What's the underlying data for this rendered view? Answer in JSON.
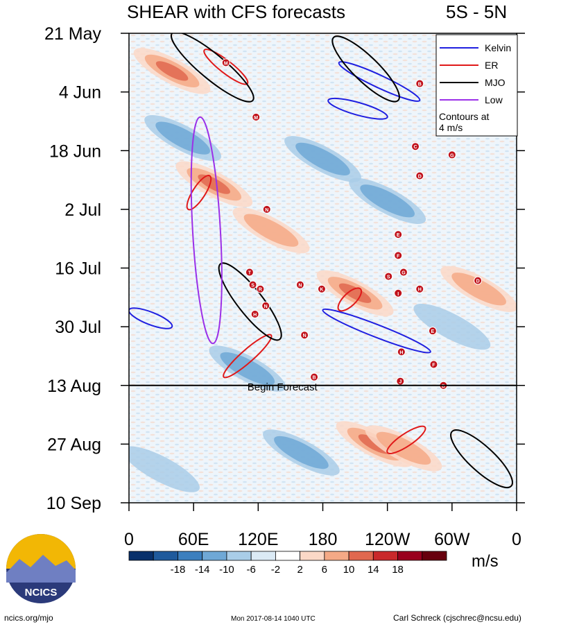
{
  "chart_data": {
    "type": "heatmap",
    "title": "SHEAR with CFS forecasts",
    "region_label": "5S - 5N",
    "y_tick_labels": [
      "21 May",
      "4 Jun",
      "18 Jun",
      "2 Jul",
      "16 Jul",
      "30 Jul",
      "13 Aug",
      "27 Aug",
      "10 Sep"
    ],
    "x_tick_labels": [
      "0",
      "60E",
      "120E",
      "180",
      "120W",
      "60W",
      "0"
    ],
    "x_range_deg": [
      0,
      360
    ],
    "y_range_days": [
      0,
      112
    ],
    "forecast_start_day": 84,
    "forecast_label": "Begin Forecast",
    "colorbar": {
      "levels": [
        "-18",
        "-14",
        "-10",
        "-6",
        "-2",
        "2",
        "6",
        "10",
        "14",
        "18"
      ],
      "colors": [
        "#08306b",
        "#1f5a9c",
        "#3c7fbe",
        "#6fa8d6",
        "#a9cde8",
        "#dbeaf5",
        "#ffffff",
        "#fbd8c7",
        "#f4a986",
        "#e0684f",
        "#c9292b",
        "#99001d",
        "#67000d"
      ],
      "units": "m/s"
    },
    "legend": {
      "entries": [
        {
          "name": "Kelvin",
          "color": "#1f1fe0"
        },
        {
          "name": "ER",
          "color": "#e01919"
        },
        {
          "name": "MJO",
          "color": "#000000"
        },
        {
          "name": "Low",
          "color": "#9b30e8"
        }
      ],
      "note": "Contours at 4 m/s"
    },
    "anomaly_patches": [
      {
        "lon": 40,
        "day": 9,
        "sign": "pos",
        "strength": 3
      },
      {
        "lon": 79,
        "day": 36,
        "sign": "pos",
        "strength": 3
      },
      {
        "lon": 132,
        "day": 47,
        "sign": "pos",
        "strength": 2
      },
      {
        "lon": 210,
        "day": 62,
        "sign": "pos",
        "strength": 3
      },
      {
        "lon": 228,
        "day": 98,
        "sign": "pos",
        "strength": 3
      },
      {
        "lon": 255,
        "day": 99,
        "sign": "pos",
        "strength": 2
      },
      {
        "lon": 325,
        "day": 61,
        "sign": "pos",
        "strength": 2
      },
      {
        "lon": 50,
        "day": 25,
        "sign": "neg",
        "strength": 2
      },
      {
        "lon": 180,
        "day": 30,
        "sign": "neg",
        "strength": 2
      },
      {
        "lon": 240,
        "day": 40,
        "sign": "neg",
        "strength": 2
      },
      {
        "lon": 300,
        "day": 70,
        "sign": "neg",
        "strength": 1
      },
      {
        "lon": 110,
        "day": 80,
        "sign": "neg",
        "strength": 2
      },
      {
        "lon": 160,
        "day": 100,
        "sign": "neg",
        "strength": 2
      },
      {
        "lon": 30,
        "day": 104,
        "sign": "neg",
        "strength": 1
      }
    ],
    "filtered_contours": [
      {
        "type": "Kelvin",
        "lon_start": 195,
        "day_start": 7,
        "lon_end": 270,
        "day_end": 16
      },
      {
        "type": "Kelvin",
        "lon_start": 185,
        "day_start": 16,
        "lon_end": 240,
        "day_end": 20
      },
      {
        "type": "Kelvin",
        "lon_start": 180,
        "day_start": 66,
        "lon_end": 280,
        "day_end": 76
      },
      {
        "type": "Kelvin",
        "lon_start": 0,
        "day_start": 66,
        "lon_end": 40,
        "day_end": 70
      },
      {
        "type": "ER",
        "lon_start": 70,
        "day_start": 4,
        "lon_end": 110,
        "day_end": 12
      },
      {
        "type": "ER",
        "lon_start": 75,
        "day_start": 34,
        "lon_end": 55,
        "day_end": 42
      },
      {
        "type": "ER",
        "lon_start": 195,
        "day_start": 66,
        "lon_end": 215,
        "day_end": 61
      },
      {
        "type": "ER",
        "lon_start": 88,
        "day_start": 82,
        "lon_end": 132,
        "day_end": 72
      },
      {
        "type": "ER",
        "lon_start": 240,
        "day_start": 100,
        "lon_end": 275,
        "day_end": 94
      },
      {
        "type": "MJO",
        "lon_start": 40,
        "day_start": 0,
        "lon_end": 115,
        "day_end": 16
      },
      {
        "type": "MJO",
        "lon_start": 190,
        "day_start": 1,
        "lon_end": 250,
        "day_end": 16
      },
      {
        "type": "MJO",
        "lon_start": 85,
        "day_start": 55,
        "lon_end": 140,
        "day_end": 73
      },
      {
        "type": "MJO",
        "lon_start": 300,
        "day_start": 95,
        "lon_end": 355,
        "day_end": 108
      },
      {
        "type": "Low",
        "lon_start": 66,
        "day_start": 20,
        "lon_end": 78,
        "day_end": 74
      }
    ],
    "storm_markers": [
      {
        "lon": 90,
        "day": 7,
        "letter": "M"
      },
      {
        "lon": 118,
        "day": 20,
        "letter": "M"
      },
      {
        "lon": 270,
        "day": 12,
        "letter": "B"
      },
      {
        "lon": 266,
        "day": 27,
        "letter": "C"
      },
      {
        "lon": 300,
        "day": 29,
        "letter": "G"
      },
      {
        "lon": 270,
        "day": 34,
        "letter": "D"
      },
      {
        "lon": 128,
        "day": 42,
        "letter": "N"
      },
      {
        "lon": 250,
        "day": 48,
        "letter": "E"
      },
      {
        "lon": 250,
        "day": 53,
        "letter": "F"
      },
      {
        "lon": 112,
        "day": 57,
        "letter": "T"
      },
      {
        "lon": 115,
        "day": 60,
        "letter": "S"
      },
      {
        "lon": 122,
        "day": 61,
        "letter": "R"
      },
      {
        "lon": 127,
        "day": 65,
        "letter": "N"
      },
      {
        "lon": 117,
        "day": 67,
        "letter": "H"
      },
      {
        "lon": 159,
        "day": 60,
        "letter": "N"
      },
      {
        "lon": 179,
        "day": 61,
        "letter": "K"
      },
      {
        "lon": 241,
        "day": 58,
        "letter": "S"
      },
      {
        "lon": 255,
        "day": 57,
        "letter": "G"
      },
      {
        "lon": 270,
        "day": 61,
        "letter": "H"
      },
      {
        "lon": 250,
        "day": 62,
        "letter": "I"
      },
      {
        "lon": 324,
        "day": 59,
        "letter": "D"
      },
      {
        "lon": 163,
        "day": 72,
        "letter": "N"
      },
      {
        "lon": 282,
        "day": 71,
        "letter": "E"
      },
      {
        "lon": 253,
        "day": 76,
        "letter": "H"
      },
      {
        "lon": 283,
        "day": 79,
        "letter": "F"
      },
      {
        "lon": 172,
        "day": 82,
        "letter": "B"
      },
      {
        "lon": 252,
        "day": 83,
        "letter": "J"
      },
      {
        "lon": 292,
        "day": 84,
        "letter": "B"
      }
    ]
  },
  "logo": {
    "text": "NCICS"
  },
  "footer": {
    "left": "ncics.org/mjo",
    "center": "Mon 2017-08-14 1040 UTC",
    "right": "Carl Schreck (cjschrec@ncsu.edu)"
  },
  "colors": {
    "forecast_line": "#000000",
    "frame": "#000000"
  }
}
